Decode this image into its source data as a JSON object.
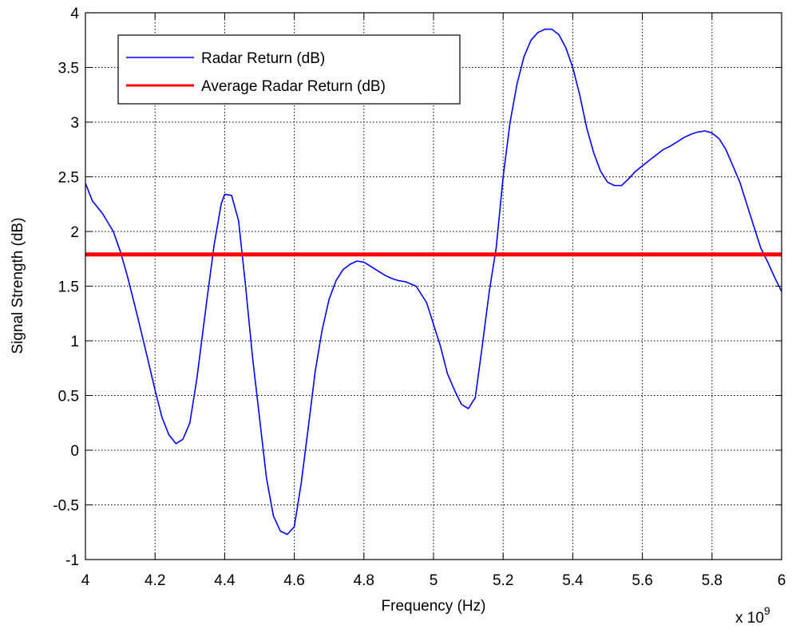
{
  "chart_data": {
    "type": "line",
    "title": "",
    "xlabel": "Frequency (Hz)",
    "ylabel": "Signal Strength (dB)",
    "x_exponent_label": "x 10",
    "x_exponent_power": "9",
    "x_scale": 1000000000,
    "xlim": [
      4,
      6
    ],
    "ylim": [
      -1,
      4
    ],
    "x_ticks": [
      4,
      4.2,
      4.4,
      4.6,
      4.8,
      5,
      5.2,
      5.4,
      5.6,
      5.8,
      6
    ],
    "x_tick_labels": [
      "4",
      "4.2",
      "4.4",
      "4.6",
      "4.8",
      "5",
      "5.2",
      "5.4",
      "5.6",
      "5.8",
      "6"
    ],
    "y_ticks": [
      -1,
      -0.5,
      0,
      0.5,
      1,
      1.5,
      2,
      2.5,
      3,
      3.5,
      4
    ],
    "y_tick_labels": [
      "-1",
      "-0.5",
      "0",
      "0.5",
      "1",
      "1.5",
      "2",
      "2.5",
      "3",
      "3.5",
      "4"
    ],
    "grid": true,
    "legend_position": "top-left",
    "series": [
      {
        "name": "Radar Return (dB)",
        "color": "#0000ff",
        "x": [
          4.0,
          4.02,
          4.05,
          4.08,
          4.1,
          4.12,
          4.15,
          4.18,
          4.2,
          4.22,
          4.24,
          4.26,
          4.28,
          4.3,
          4.32,
          4.35,
          4.37,
          4.39,
          4.4,
          4.42,
          4.44,
          4.46,
          4.48,
          4.5,
          4.52,
          4.54,
          4.56,
          4.58,
          4.6,
          4.62,
          4.64,
          4.66,
          4.68,
          4.7,
          4.72,
          4.74,
          4.76,
          4.78,
          4.8,
          4.82,
          4.84,
          4.86,
          4.88,
          4.9,
          4.92,
          4.95,
          4.98,
          5.0,
          5.02,
          5.04,
          5.06,
          5.08,
          5.1,
          5.12,
          5.14,
          5.16,
          5.18,
          5.2,
          5.22,
          5.24,
          5.26,
          5.28,
          5.3,
          5.32,
          5.34,
          5.36,
          5.38,
          5.4,
          5.42,
          5.44,
          5.46,
          5.48,
          5.5,
          5.52,
          5.54,
          5.56,
          5.58,
          5.6,
          5.62,
          5.64,
          5.66,
          5.68,
          5.7,
          5.72,
          5.74,
          5.76,
          5.78,
          5.8,
          5.82,
          5.84,
          5.86,
          5.88,
          5.9,
          5.92,
          5.94,
          5.96,
          5.98,
          6.0
        ],
        "y": [
          2.44,
          2.28,
          2.16,
          2.0,
          1.82,
          1.6,
          1.22,
          0.82,
          0.55,
          0.3,
          0.14,
          0.06,
          0.1,
          0.25,
          0.65,
          1.4,
          1.88,
          2.25,
          2.34,
          2.33,
          2.1,
          1.5,
          0.85,
          0.3,
          -0.25,
          -0.6,
          -0.74,
          -0.77,
          -0.7,
          -0.3,
          0.2,
          0.72,
          1.1,
          1.38,
          1.55,
          1.65,
          1.7,
          1.73,
          1.72,
          1.68,
          1.64,
          1.6,
          1.57,
          1.55,
          1.54,
          1.5,
          1.35,
          1.15,
          0.95,
          0.7,
          0.55,
          0.42,
          0.38,
          0.48,
          0.95,
          1.45,
          1.85,
          2.5,
          3.0,
          3.35,
          3.6,
          3.75,
          3.82,
          3.85,
          3.85,
          3.8,
          3.68,
          3.5,
          3.25,
          2.95,
          2.72,
          2.55,
          2.45,
          2.42,
          2.42,
          2.48,
          2.55,
          2.6,
          2.65,
          2.7,
          2.75,
          2.78,
          2.82,
          2.86,
          2.89,
          2.91,
          2.92,
          2.9,
          2.85,
          2.75,
          2.6,
          2.45,
          2.25,
          2.05,
          1.85,
          1.72,
          1.58,
          1.45
        ]
      },
      {
        "name": "Average Radar Return (dB)",
        "color": "#ff0000",
        "x": [
          4,
          6
        ],
        "y": [
          1.79,
          1.79
        ]
      }
    ]
  }
}
